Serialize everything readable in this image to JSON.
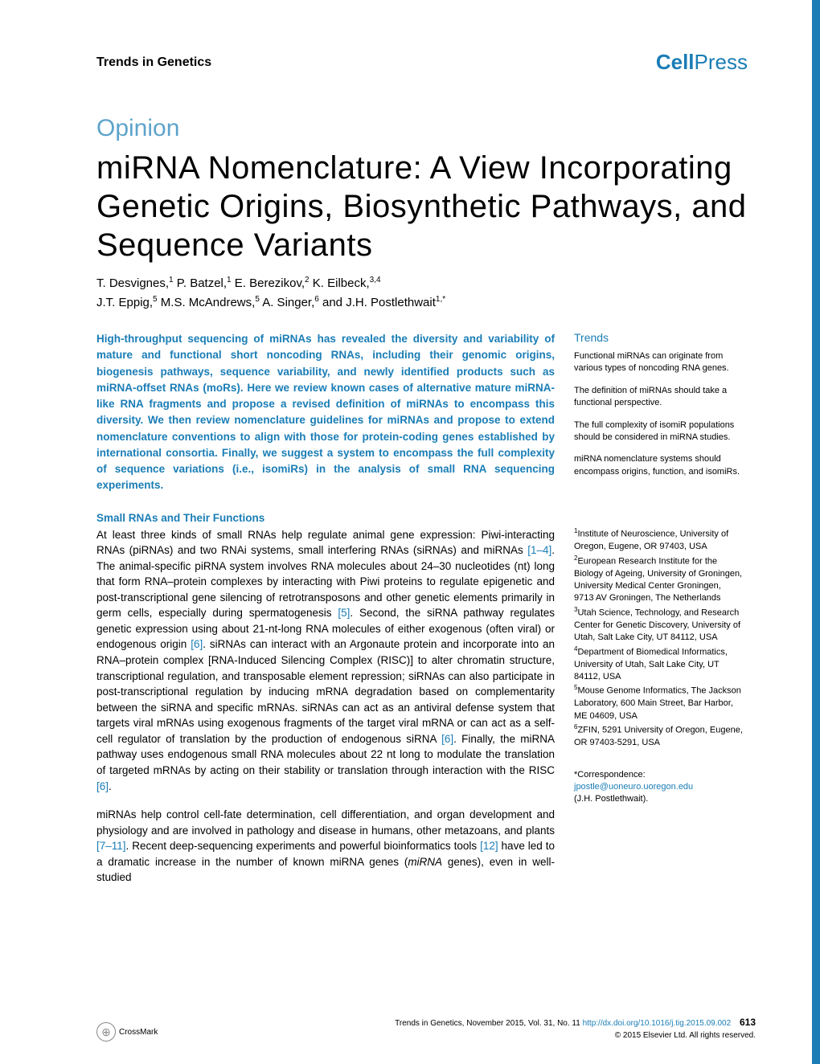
{
  "journal": "Trends in Genetics",
  "publisher": {
    "part1": "Cell",
    "part2": "Press"
  },
  "article_type": "Opinion",
  "title": "miRNA Nomenclature: A View Incorporating Genetic Origins, Biosynthetic Pathways, and Sequence Variants",
  "authors_line1": "T. Desvignes,",
  "authors_sup1": "1",
  "authors_line2": " P. Batzel,",
  "authors_sup2": "1",
  "authors_line3": " E. Berezikov,",
  "authors_sup3": "2",
  "authors_line4": " K. Eilbeck,",
  "authors_sup4": "3,4",
  "authors_line5": "J.T. Eppig,",
  "authors_sup5": "5",
  "authors_line6": " M.S. McAndrews,",
  "authors_sup6": "5",
  "authors_line7": " A. Singer,",
  "authors_sup7": "6",
  "authors_line8": " and J.H. Postlethwait",
  "authors_sup8": "1,*",
  "abstract": "High-throughput sequencing of miRNAs has revealed the diversity and variability of mature and functional short noncoding RNAs, including their genomic origins, biogenesis pathways, sequence variability, and newly identified products such as miRNA-offset RNAs (moRs). Here we review known cases of alternative mature miRNA-like RNA fragments and propose a revised definition of miRNAs to encompass this diversity. We then review nomenclature guidelines for miRNAs and propose to extend nomenclature conventions to align with those for protein-coding genes established by international consortia. Finally, we suggest a system to encompass the full complexity of sequence variations (i.e., isomiRs) in the analysis of small RNA sequencing experiments.",
  "section1_heading": "Small RNAs and Their Functions",
  "section1_para1_a": "At least three kinds of small RNAs help regulate animal gene expression: Piwi-interacting RNAs (piRNAs) and two RNAi systems, small interfering RNAs (siRNAs) and miRNAs ",
  "section1_ref1": "[1–4]",
  "section1_para1_b": ". The animal-specific piRNA system involves RNA molecules about 24–30 nucleotides (nt) long that form RNA–protein complexes by interacting with Piwi proteins to regulate epigenetic and post-transcriptional gene silencing of retrotransposons and other genetic elements primarily in germ cells, especially during spermatogenesis ",
  "section1_ref2": "[5]",
  "section1_para1_c": ". Second, the siRNA pathway regulates genetic expression using about 21-nt-long RNA molecules of either exogenous (often viral) or endogenous origin ",
  "section1_ref3": "[6]",
  "section1_para1_d": ". siRNAs can interact with an Argonaute protein and incorporate into an RNA–protein complex [RNA-Induced Silencing Complex (RISC)] to alter chromatin structure, transcriptional regulation, and transposable element repression; siRNAs can also participate in post-transcriptional regulation by inducing mRNA degradation based on complementarity between the siRNA and specific mRNAs. siRNAs can act as an antiviral defense system that targets viral mRNAs using exogenous fragments of the target viral mRNA or can act as a self-cell regulator of translation by the production of endogenous siRNA ",
  "section1_ref4": "[6]",
  "section1_para1_e": ". Finally, the miRNA pathway uses endogenous small RNA molecules about 22 nt long to modulate the translation of targeted mRNAs by acting on their stability or translation through interaction with the RISC ",
  "section1_ref5": "[6]",
  "section1_para1_f": ".",
  "section1_para2_a": "miRNAs help control cell-fate determination, cell differentiation, and organ development and physiology and are involved in pathology and disease in humans, other metazoans, and plants ",
  "section1_ref6": "[7–11]",
  "section1_para2_b": ". Recent deep-sequencing experiments and powerful bioinformatics tools ",
  "section1_ref7": "[12]",
  "section1_para2_c": " have led to a dramatic increase in the number of known miRNA genes (",
  "section1_italic": "miRNA",
  "section1_para2_d": " genes), even in well-studied",
  "trends": {
    "heading": "Trends",
    "items": [
      "Functional miRNAs can originate from various types of noncoding RNA genes.",
      "The definition of miRNAs should take a functional perspective.",
      "The full complexity of isomiR populations should be considered in miRNA studies.",
      "miRNA nomenclature systems should encompass origins, function, and isomiRs."
    ]
  },
  "affiliations": [
    {
      "sup": "1",
      "text": "Institute of Neuroscience, University of Oregon, Eugene, OR 97403, USA"
    },
    {
      "sup": "2",
      "text": "European Research Institute for the Biology of Ageing, University of Groningen, University Medical Center Groningen, 9713 AV Groningen, The Netherlands"
    },
    {
      "sup": "3",
      "text": "Utah Science, Technology, and Research Center for Genetic Discovery, University of Utah, Salt Lake City, UT 84112, USA"
    },
    {
      "sup": "4",
      "text": "Department of Biomedical Informatics, University of Utah, Salt Lake City, UT 84112, USA"
    },
    {
      "sup": "5",
      "text": "Mouse Genome Informatics, The Jackson Laboratory, 600 Main Street, Bar Harbor, ME 04609, USA"
    },
    {
      "sup": "6",
      "text": "ZFIN, 5291 University of Oregon, Eugene, OR 97403-5291, USA"
    }
  ],
  "correspondence": {
    "label": "*Correspondence:",
    "email": "jpostle@uoneuro.uoregon.edu",
    "name": "(J.H. Postlethwait)."
  },
  "footer": {
    "crossmark": "CrossMark",
    "citation": "Trends in Genetics, November 2015, Vol. 31, No. 11",
    "doi": "http://dx.doi.org/10.1016/j.tig.2015.09.002",
    "page": "613",
    "copyright": "© 2015 Elsevier Ltd. All rights reserved."
  },
  "colors": {
    "accent": "#1a7db6",
    "text": "#000000",
    "background": "#ffffff"
  }
}
